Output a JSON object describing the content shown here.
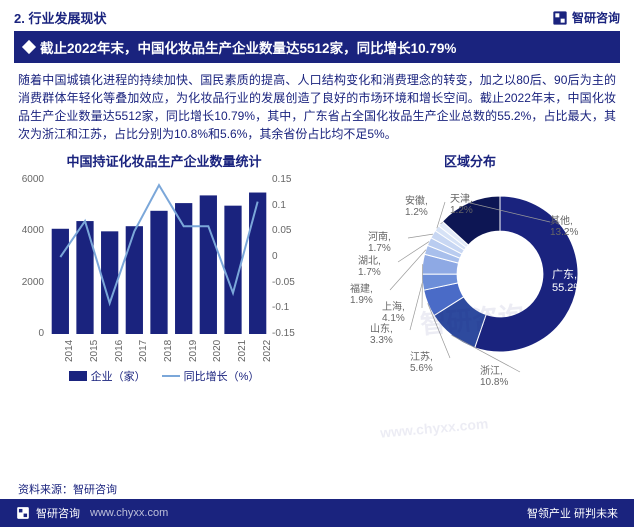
{
  "header": {
    "section_number": "2.",
    "section_title": "行业发展现状",
    "brand": "智研咨询"
  },
  "title_bar": "截止2022年末，中国化妆品生产企业数量达5512家，同比增长10.79%",
  "body_text": "随着中国城镇化进程的持续加快、国民素质的提高、人口结构变化和消费理念的转变，加之以80后、90后为主的消费群体年轻化等叠加效应，为化妆品行业的发展创造了良好的市场环境和增长空间。截止2022年末，中国化妆品生产企业数量达5512家，同比增长10.79%，其中，广东省占全国化妆品生产企业总数的55.2%，占比最大，其次为浙江和江苏，占比分别为10.8%和5.6%，其余省份占比均不足5%。",
  "bar_chart": {
    "title": "中国持证化妆品生产企业数量统计",
    "type": "bar+line",
    "years": [
      "2014",
      "2015",
      "2016",
      "2017",
      "2018",
      "2019",
      "2020",
      "2021",
      "2022"
    ],
    "bar_values": [
      4100,
      4400,
      4000,
      4200,
      4800,
      5100,
      5400,
      5000,
      5512
    ],
    "line_values": [
      0.0,
      0.07,
      -0.09,
      0.05,
      0.14,
      0.06,
      0.06,
      -0.07,
      0.1079
    ],
    "bar_color": "#1a237e",
    "line_color": "#7ba7d9",
    "y1_ticks": [
      0,
      2000,
      4000,
      6000
    ],
    "y1_max": 6000,
    "y2_ticks": [
      -0.15,
      -0.1,
      -0.05,
      0,
      0.05,
      0.1,
      0.15
    ],
    "y2_min": -0.15,
    "y2_max": 0.15,
    "legend_bar": "企业（家）",
    "legend_line": "同比增长（%）",
    "label_fontsize": 10
  },
  "donut_chart": {
    "title": "区域分布",
    "type": "donut",
    "slices": [
      {
        "label": "广东",
        "value": 55.2,
        "color": "#1a237e"
      },
      {
        "label": "浙江",
        "value": 10.8,
        "color": "#2e4a9e"
      },
      {
        "label": "江苏",
        "value": 5.6,
        "color": "#4a6bc7"
      },
      {
        "label": "山东",
        "value": 3.3,
        "color": "#6c8ed9"
      },
      {
        "label": "上海",
        "value": 4.1,
        "color": "#8ea9e4"
      },
      {
        "label": "福建",
        "value": 1.9,
        "color": "#a8bfec"
      },
      {
        "label": "湖北",
        "value": 1.7,
        "color": "#b9ccf0"
      },
      {
        "label": "河南",
        "value": 1.7,
        "color": "#c8d7f3"
      },
      {
        "label": "安徽",
        "value": 1.2,
        "color": "#d6e2f6"
      },
      {
        "label": "天津",
        "value": 1.2,
        "color": "#e3ebf9"
      },
      {
        "label": "其他",
        "value": 13.2,
        "color": "#0d1654"
      }
    ],
    "inner_radius_pct": 55,
    "background_color": "#ffffff"
  },
  "source": "资料来源：智研咨询",
  "footer": {
    "left_brand": "智研咨询",
    "url": "www.chyxx.com",
    "slogan": "智领产业 研判未来"
  },
  "colors": {
    "primary": "#1a237e",
    "line": "#7ba7d9",
    "text": "#1a237e"
  }
}
